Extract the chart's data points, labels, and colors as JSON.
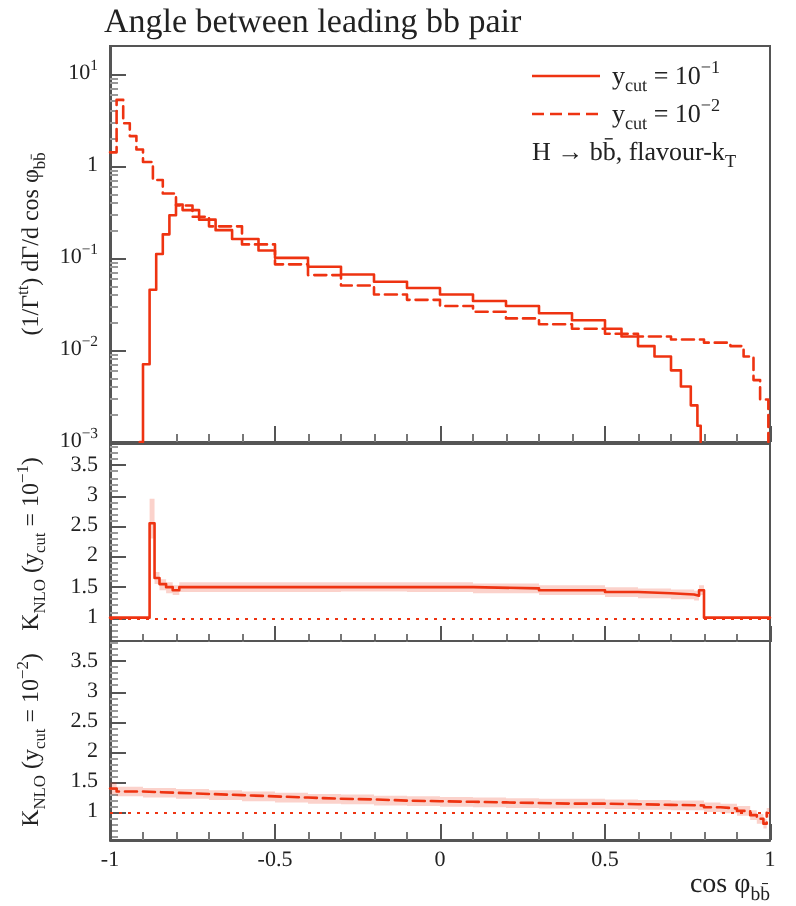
{
  "chart_data": [
    {
      "type": "step",
      "title": "Angle between leading bb pair",
      "ylabel": "(1/Γ$^{tt}$) dΓ/d cos φ$_{bb̄}$",
      "log": "y",
      "ylim": [
        0.001,
        20
      ],
      "yticks": [
        {
          "value": 10,
          "label": "10$^{1}$"
        },
        1,
        {
          "value": 0.1,
          "label": "10$^{−1}$"
        },
        {
          "value": 0.01,
          "label": "10$^{−2}$"
        },
        {
          "value": 0.001,
          "label": "10$^{−3}$"
        }
      ],
      "xlim": [
        -1,
        1
      ],
      "xticks": [
        {
          "value": -1,
          "label": null
        },
        {
          "value": -0.5,
          "label": null
        },
        {
          "value": 0,
          "label": null
        },
        {
          "value": 0.5,
          "label": null
        },
        {
          "value": 1,
          "label": null
        }
      ],
      "tick_labels": "y",
      "legend": "top right",
      "grid": false,
      "annotations": [
        "H → bb̄, flavour-k$_{T}$"
      ],
      "series": [
        {
          "name": "y$_{cut}$ = 10$^{−1}$",
          "color": "#ee3311",
          "line_style": "solid",
          "x": [
            -0.91,
            -0.9,
            -0.88,
            -0.86,
            -0.84,
            -0.82,
            -0.8,
            -0.78,
            -0.73,
            -0.68,
            -0.63,
            -0.55,
            -0.5,
            -0.4,
            -0.3,
            -0.2,
            -0.1,
            0,
            0.1,
            0.2,
            0.3,
            0.4,
            0.5,
            0.55,
            0.6,
            0.65,
            0.7,
            0.73,
            0.76,
            0.78,
            0.79
          ],
          "values": [
            0.001,
            0.007,
            0.045,
            0.11,
            0.18,
            0.29,
            0.38,
            0.33,
            0.26,
            0.2,
            0.16,
            0.12,
            0.1,
            0.08,
            0.066,
            0.055,
            0.047,
            0.04,
            0.034,
            0.03,
            0.025,
            0.021,
            0.017,
            0.014,
            0.011,
            0.0085,
            0.006,
            0.004,
            0.0025,
            0.0015,
            0.001
          ]
        },
        {
          "name": "y$_{cut}$ = 10$^{−2}$",
          "color": "#ee3311",
          "line_style": "dashed",
          "x": [
            -1,
            -0.98,
            -0.96,
            -0.94,
            -0.92,
            -0.9,
            -0.87,
            -0.84,
            -0.8,
            -0.75,
            -0.7,
            -0.6,
            -0.5,
            -0.4,
            -0.3,
            -0.2,
            -0.1,
            0,
            0.1,
            0.2,
            0.3,
            0.4,
            0.5,
            0.6,
            0.7,
            0.8,
            0.88,
            0.92,
            0.95,
            0.97,
            0.985,
            0.995
          ],
          "values": [
            1.4,
            5.2,
            2.9,
            2.1,
            1.5,
            1.1,
            0.7,
            0.5,
            0.37,
            0.28,
            0.22,
            0.14,
            0.085,
            0.065,
            0.05,
            0.04,
            0.035,
            0.03,
            0.026,
            0.022,
            0.019,
            0.017,
            0.015,
            0.014,
            0.013,
            0.012,
            0.011,
            0.0085,
            0.0047,
            0.0029,
            0.0029,
            0.001
          ]
        }
      ]
    },
    {
      "type": "step",
      "ylabel": "K$_{NLO}$ (y$_{cut}$ = 10$^{−1}$)",
      "ylim": [
        0.6,
        3.85
      ],
      "yticks": [
        1,
        1.5,
        2,
        2.5,
        3,
        3.5
      ],
      "xlim": [
        -1,
        1
      ],
      "xticks": [
        {
          "value": -1,
          "label": null
        },
        {
          "value": -0.5,
          "label": null
        },
        {
          "value": 0,
          "label": null
        },
        {
          "value": 0.5,
          "label": null
        },
        {
          "value": 1,
          "label": null
        }
      ],
      "tick_labels": "y",
      "grid": false,
      "ref_lines": [
        {
          "axis": "y",
          "value": 1,
          "color": "#ee3311",
          "line_style": "dotted"
        }
      ],
      "series": [
        {
          "color": "#ee3311",
          "line_style": "solid",
          "x": [
            -1,
            -0.88,
            -0.865,
            -0.85,
            -0.83,
            -0.81,
            -0.79,
            -0.7,
            -0.5,
            -0.3,
            -0.1,
            0.1,
            0.3,
            0.5,
            0.6,
            0.7,
            0.77,
            0.785,
            0.8,
            1
          ],
          "values": [
            1,
            2.55,
            1.65,
            1.55,
            1.5,
            1.45,
            1.5,
            1.5,
            1.5,
            1.5,
            1.5,
            1.48,
            1.45,
            1.42,
            1.4,
            1.38,
            1.36,
            1.45,
            1,
            1
          ],
          "lower": [
            null,
            2.3,
            1.55,
            1.45,
            1.4,
            1.37,
            1.42,
            1.42,
            1.42,
            1.43,
            1.42,
            1.4,
            1.37,
            1.34,
            1.32,
            1.3,
            1.28,
            1.37,
            null,
            null
          ],
          "upper": [
            null,
            2.95,
            1.75,
            1.63,
            1.58,
            1.53,
            1.58,
            1.58,
            1.58,
            1.58,
            1.58,
            1.56,
            1.53,
            1.5,
            1.48,
            1.46,
            1.44,
            1.53,
            null,
            null
          ]
        }
      ]
    },
    {
      "type": "step",
      "xlabel": "cos φ$_{bb̄}$",
      "ylabel": "K$_{NLO}$ (y$_{cut}$ = 10$^{−2}$)",
      "ylim": [
        0.55,
        3.85
      ],
      "yticks": [
        1,
        1.5,
        2,
        2.5,
        3,
        3.5
      ],
      "xlim": [
        -1,
        1
      ],
      "xticks": [
        -1,
        -0.5,
        0,
        0.5,
        1
      ],
      "grid": false,
      "ref_lines": [
        {
          "axis": "y",
          "value": 1,
          "color": "#ee3311",
          "line_style": "dotted"
        }
      ],
      "series": [
        {
          "color": "#ee3311",
          "line_style": "dashed",
          "x": [
            -1,
            -0.98,
            -0.9,
            -0.8,
            -0.7,
            -0.6,
            -0.5,
            -0.4,
            -0.3,
            -0.2,
            -0.1,
            0,
            0.1,
            0.2,
            0.3,
            0.4,
            0.5,
            0.6,
            0.7,
            0.8,
            0.85,
            0.9,
            0.94,
            0.96,
            0.98,
            0.99
          ],
          "values": [
            1.4,
            1.35,
            1.33,
            1.31,
            1.29,
            1.27,
            1.25,
            1.23,
            1.22,
            1.2,
            1.19,
            1.18,
            1.17,
            1.16,
            1.15,
            1.15,
            1.14,
            1.13,
            1.12,
            1.09,
            1.07,
            1.03,
            0.96,
            0.9,
            0.82,
            1.0
          ],
          "lower": [
            1.3,
            1.27,
            1.25,
            1.23,
            1.21,
            1.19,
            1.17,
            1.15,
            1.14,
            1.12,
            1.11,
            1.1,
            1.09,
            1.08,
            1.07,
            1.07,
            1.06,
            1.05,
            1.04,
            1.01,
            0.99,
            0.95,
            0.88,
            0.82,
            0.74,
            0.92
          ],
          "upper": [
            1.5,
            1.43,
            1.41,
            1.39,
            1.37,
            1.35,
            1.33,
            1.31,
            1.3,
            1.28,
            1.27,
            1.26,
            1.25,
            1.24,
            1.23,
            1.23,
            1.22,
            1.21,
            1.2,
            1.17,
            1.15,
            1.11,
            1.04,
            0.98,
            0.9,
            1.08
          ]
        }
      ]
    }
  ]
}
